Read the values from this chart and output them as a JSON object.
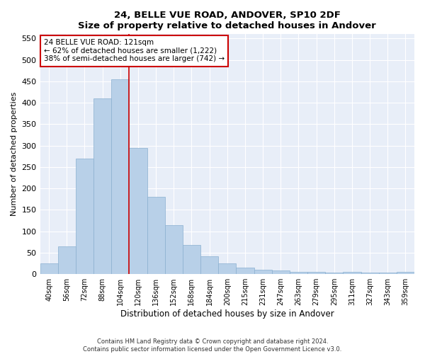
{
  "title": "24, BELLE VUE ROAD, ANDOVER, SP10 2DF",
  "subtitle": "Size of property relative to detached houses in Andover",
  "xlabel": "Distribution of detached houses by size in Andover",
  "ylabel": "Number of detached properties",
  "categories": [
    "40sqm",
    "56sqm",
    "72sqm",
    "88sqm",
    "104sqm",
    "120sqm",
    "136sqm",
    "152sqm",
    "168sqm",
    "184sqm",
    "200sqm",
    "215sqm",
    "231sqm",
    "247sqm",
    "263sqm",
    "279sqm",
    "295sqm",
    "311sqm",
    "327sqm",
    "343sqm",
    "359sqm"
  ],
  "values": [
    25,
    65,
    270,
    410,
    455,
    295,
    180,
    115,
    68,
    42,
    25,
    15,
    11,
    8,
    5,
    5,
    3,
    5,
    3,
    3,
    5
  ],
  "bar_color": "#b8d0e8",
  "bar_edge_color": "#8ab0d0",
  "property_label": "24 BELLE VUE ROAD: 121sqm",
  "annotation_line1": "← 62% of detached houses are smaller (1,222)",
  "annotation_line2": "38% of semi-detached houses are larger (742) →",
  "vline_color": "#cc0000",
  "annotation_box_facecolor": "#ffffff",
  "annotation_box_edgecolor": "#cc0000",
  "ylim": [
    0,
    560
  ],
  "yticks": [
    0,
    50,
    100,
    150,
    200,
    250,
    300,
    350,
    400,
    450,
    500,
    550
  ],
  "plot_bg_color": "#e8eef8",
  "fig_bg_color": "#ffffff",
  "grid_color": "#ffffff",
  "vline_xindex": 4.5,
  "footer_line1": "Contains HM Land Registry data © Crown copyright and database right 2024.",
  "footer_line2": "Contains public sector information licensed under the Open Government Licence v3.0."
}
